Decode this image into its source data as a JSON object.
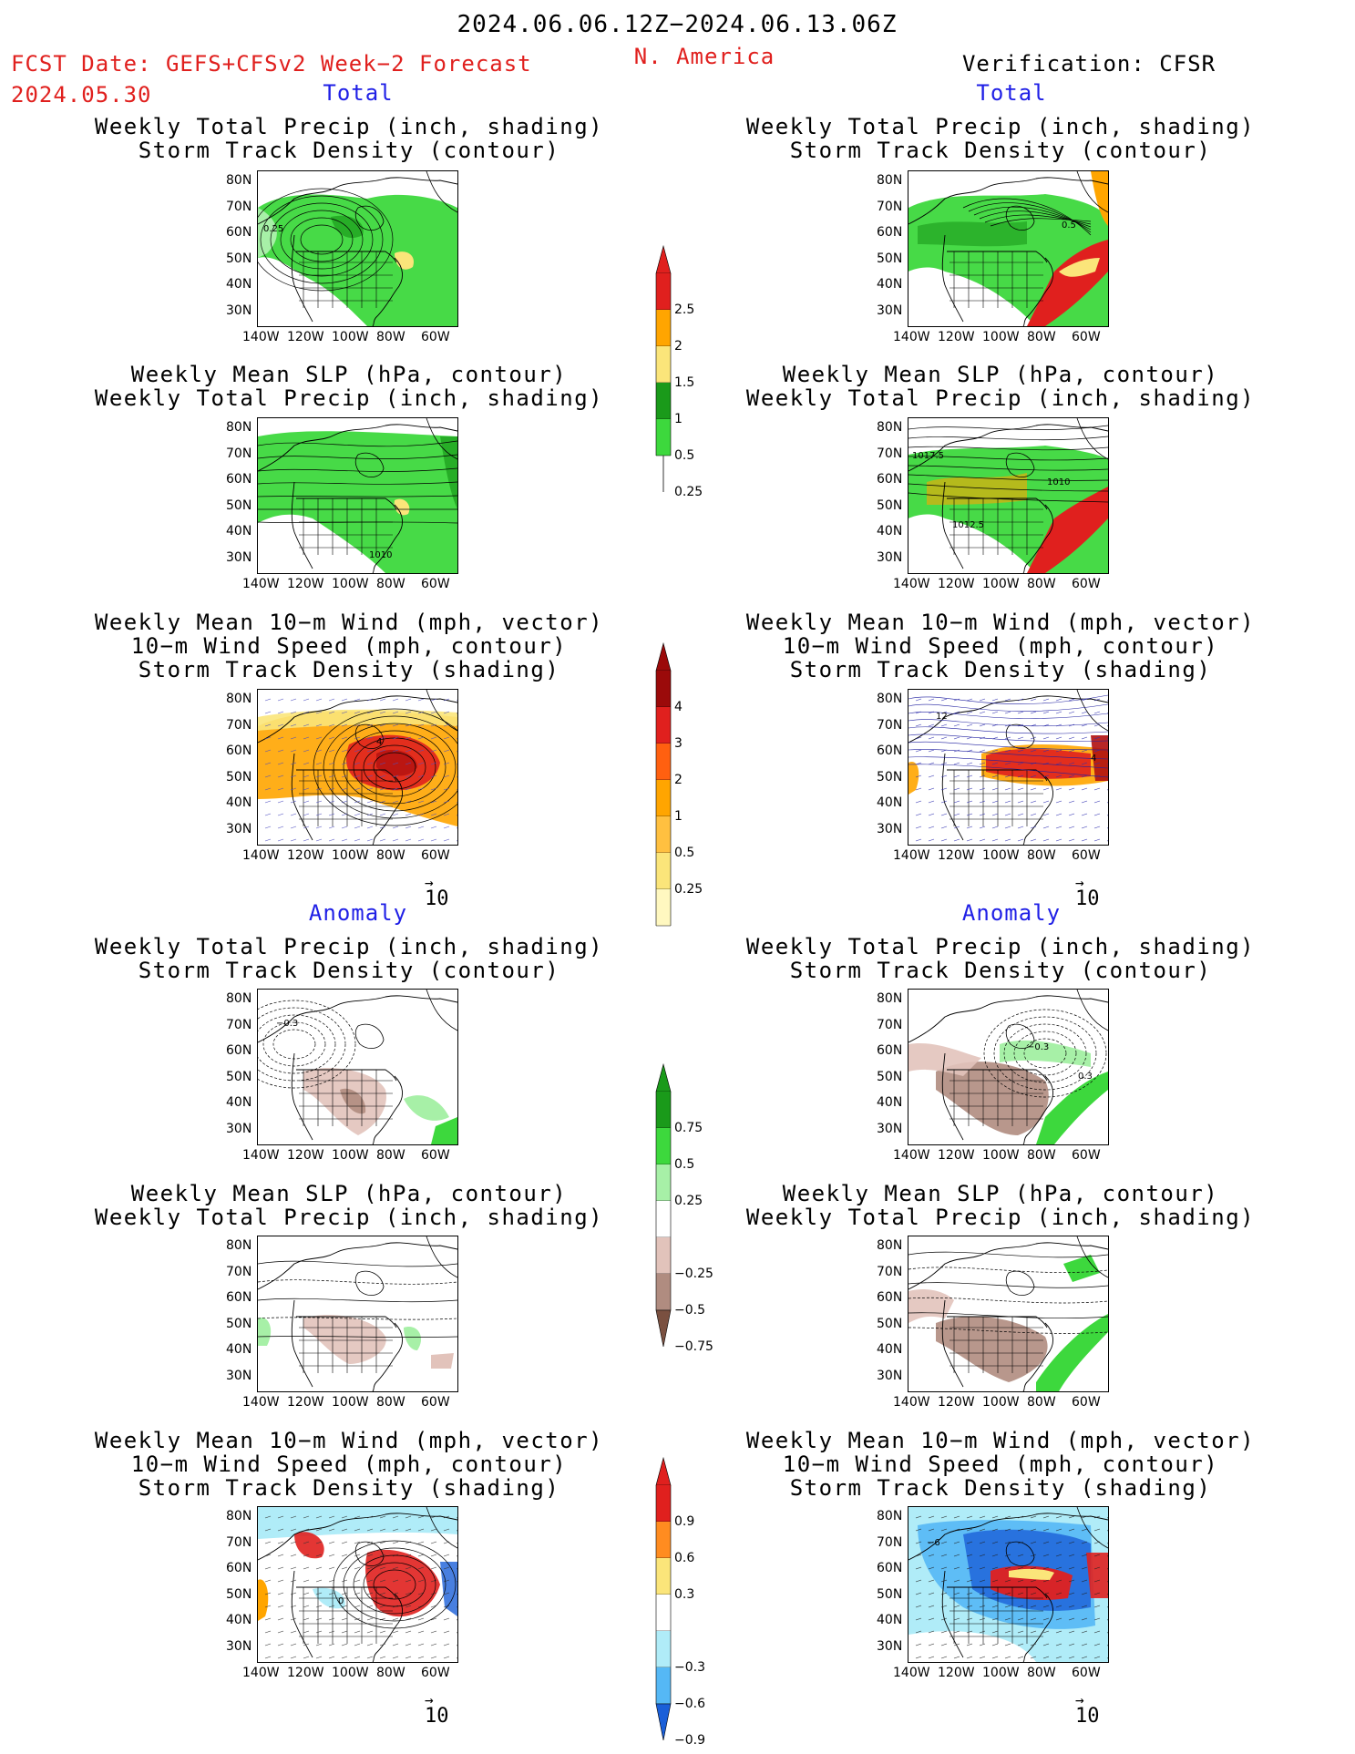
{
  "header": {
    "date_range": "2024.06.06.12Z−2024.06.13.06Z",
    "fcst_line": "FCST Date: GEFS+CFSv2 Week−2 Forecast",
    "fcst_date": "2024.05.30",
    "region": "N. America",
    "verification": "Verification: CFSR"
  },
  "sections": {
    "total": "Total",
    "anomaly": "Anomaly"
  },
  "panel_titles": {
    "precip_track": [
      "Weekly Total Precip (inch, shading)",
      "Storm Track Density (contour)"
    ],
    "slp_precip": [
      "Weekly Mean SLP (hPa, contour)",
      "Weekly Total Precip (inch, shading)"
    ],
    "wind_track": [
      "Weekly Mean 10−m Wind (mph, vector)",
      "10−m Wind Speed (mph, contour)",
      "Storm Track Density (shading)"
    ]
  },
  "axes": {
    "lat_labels": [
      "80N",
      "70N",
      "60N",
      "50N",
      "40N",
      "30N"
    ],
    "lon_labels": [
      "140W",
      "120W",
      "100W",
      "80W",
      "60W"
    ]
  },
  "vector_ref": "10",
  "colorbars": {
    "precip_total": {
      "labels": [
        "2.5",
        "2",
        "1.5",
        "1",
        "0.5",
        "0.25"
      ],
      "colors": [
        "#e0201e",
        "#ffa500",
        "#fbe57a",
        "#1a9a1a",
        "#3dd83d",
        "#a7f0a7"
      ]
    },
    "track_total": {
      "labels": [
        "4",
        "3",
        "2",
        "1",
        "0.5",
        "0.25"
      ],
      "colors": [
        "#9b0a0a",
        "#e0201e",
        "#ff6010",
        "#ffa500",
        "#ffc040",
        "#fbe57a",
        "#fff8c0"
      ]
    },
    "precip_anom": {
      "labels": [
        "0.75",
        "0.5",
        "0.25",
        "−0.25",
        "−0.5",
        "−0.75"
      ],
      "colors": [
        "#1a9a1a",
        "#3dd83d",
        "#a7f0a7",
        "#ffffff",
        "#e2c3bb",
        "#b08c80",
        "#7a5040"
      ]
    },
    "track_anom": {
      "labels": [
        "0.9",
        "0.6",
        "0.3",
        "−0.3",
        "−0.6",
        "−0.9"
      ],
      "colors": [
        "#e0201e",
        "#ff8c20",
        "#fbe57a",
        "#ffffff",
        "#b0ecf8",
        "#55b8f5",
        "#1a5fd8"
      ]
    }
  },
  "contour_labels": {
    "fcst_total_precip": [
      "0.25"
    ],
    "ver_total_precip": [
      "0.5"
    ],
    "fcst_total_slp": [
      "1010"
    ],
    "ver_total_slp": [
      "1017.5",
      "1010",
      "1012.5"
    ],
    "fcst_total_wind": [
      "4",
      "8"
    ],
    "ver_total_wind": [
      "12",
      "4"
    ],
    "fcst_anom_precip": [
      "−0.3"
    ],
    "ver_anom_precip": [
      "−0.3",
      "0.3"
    ],
    "fcst_anom_wind": [
      "0"
    ],
    "ver_anom_wind": [
      "−6"
    ]
  },
  "map_colors": {
    "land": "#ffffff",
    "green_light": "#a7f0a7",
    "green": "#3dd83d",
    "green_dark": "#1a9a1a",
    "yellow": "#fbe57a",
    "orange": "#ffa500",
    "red": "#e0201e",
    "brown_light": "#e2c3bb",
    "brown": "#b08c80",
    "blue_light": "#b0ecf8",
    "blue": "#55b8f5",
    "blue_dark": "#1a5fd8"
  }
}
